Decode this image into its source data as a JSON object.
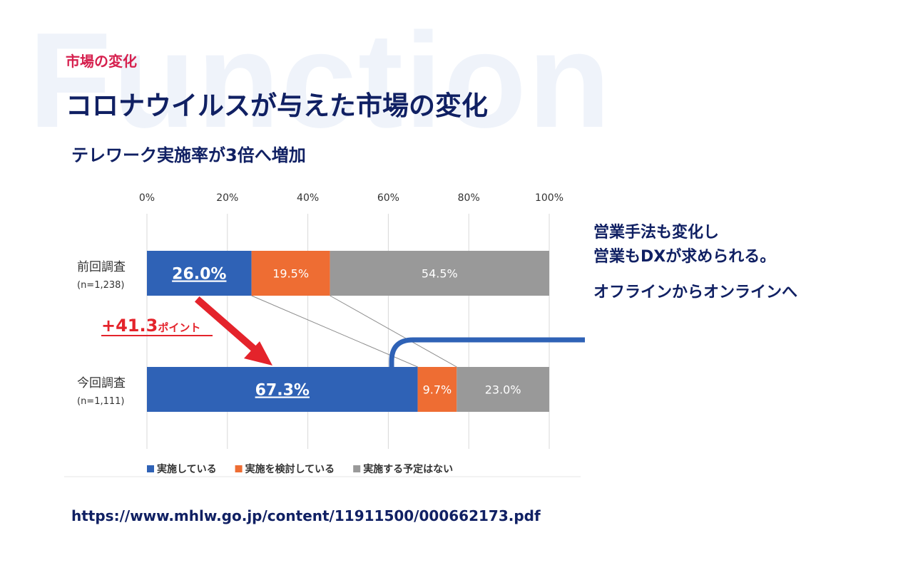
{
  "watermark": "Function",
  "section_label": "市場の変化",
  "title": "コロナウイルスが与えた市場の変化",
  "subtitle": "テレワーク実施率が3倍へ増加",
  "side_notes": {
    "line1": "営業手法も変化し",
    "line2": "営業もDXが求められる。",
    "line3": "オフラインからオンラインへ"
  },
  "source_url": "https://www.mhlw.go.jp/content/11911500/000662173.pdf",
  "chart_data": {
    "type": "bar",
    "orientation": "horizontal",
    "stacked": true,
    "x_ticks": [
      "0%",
      "20%",
      "40%",
      "60%",
      "80%",
      "100%"
    ],
    "xlim": [
      0,
      100
    ],
    "grid": true,
    "legend_placement": "bottom",
    "categories": [
      {
        "label": "前回調査",
        "sublabel": "(n=1,238)"
      },
      {
        "label": "今回調査",
        "sublabel": "(n=1,111)"
      }
    ],
    "series": [
      {
        "name": "実施している",
        "color": "#2f62b6",
        "values": [
          26.0,
          67.3
        ],
        "labels": [
          "26.0%",
          "67.3%"
        ]
      },
      {
        "name": "実施を検討している",
        "color": "#ee6d33",
        "values": [
          19.5,
          9.7
        ],
        "labels": [
          "19.5%",
          "9.7%"
        ]
      },
      {
        "name": "実施する予定はない",
        "color": "#999999",
        "values": [
          54.5,
          23.0
        ],
        "labels": [
          "54.5%",
          "23.0%"
        ]
      }
    ],
    "annotation": {
      "value": "+41.3",
      "unit": "ポイント",
      "color": "#e4232b"
    }
  }
}
